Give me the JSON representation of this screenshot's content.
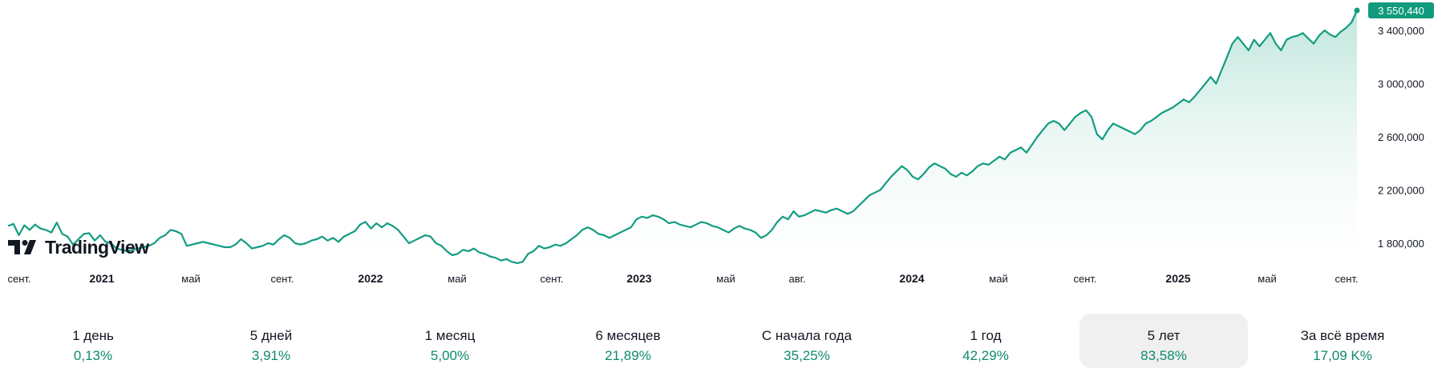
{
  "chart_data": {
    "type": "area",
    "x_labels": [
      "сент.",
      "2021",
      "май",
      "сент.",
      "2022",
      "май",
      "сент.",
      "2023",
      "май",
      "авг.",
      "2024",
      "май",
      "сент.",
      "2025",
      "май",
      "сент."
    ],
    "bold_x_labels": [
      "2021",
      "2022",
      "2023",
      "2024",
      "2025"
    ],
    "y_ticks": [
      "3 400,000",
      "3 000,000",
      "2 600,000",
      "2 200,000",
      "1 800,000"
    ],
    "y_tick_values": [
      3400000,
      3000000,
      2600000,
      2200000,
      1800000
    ],
    "current_price_label": "3 550,440",
    "current_price": 3550440,
    "ylim": [
      1600000,
      3600000
    ],
    "values": [
      1930000,
      1945000,
      1860000,
      1935000,
      1900000,
      1940000,
      1910000,
      1900000,
      1880000,
      1955000,
      1870000,
      1850000,
      1790000,
      1830000,
      1870000,
      1875000,
      1820000,
      1860000,
      1810000,
      1800000,
      1760000,
      1750000,
      1740000,
      1750000,
      1760000,
      1770000,
      1780000,
      1800000,
      1840000,
      1860000,
      1900000,
      1890000,
      1870000,
      1780000,
      1790000,
      1800000,
      1810000,
      1800000,
      1790000,
      1780000,
      1770000,
      1770000,
      1790000,
      1830000,
      1800000,
      1760000,
      1770000,
      1780000,
      1800000,
      1790000,
      1830000,
      1860000,
      1840000,
      1800000,
      1790000,
      1800000,
      1820000,
      1830000,
      1850000,
      1820000,
      1840000,
      1810000,
      1850000,
      1870000,
      1890000,
      1940000,
      1960000,
      1910000,
      1950000,
      1920000,
      1950000,
      1930000,
      1900000,
      1850000,
      1800000,
      1820000,
      1840000,
      1860000,
      1850000,
      1800000,
      1780000,
      1740000,
      1710000,
      1720000,
      1750000,
      1740000,
      1760000,
      1730000,
      1720000,
      1700000,
      1690000,
      1670000,
      1680000,
      1660000,
      1650000,
      1660000,
      1720000,
      1740000,
      1780000,
      1760000,
      1770000,
      1790000,
      1780000,
      1800000,
      1830000,
      1860000,
      1900000,
      1920000,
      1900000,
      1870000,
      1860000,
      1840000,
      1860000,
      1880000,
      1900000,
      1920000,
      1980000,
      2000000,
      1990000,
      2010000,
      2000000,
      1980000,
      1950000,
      1960000,
      1940000,
      1930000,
      1920000,
      1940000,
      1960000,
      1950000,
      1930000,
      1920000,
      1900000,
      1880000,
      1910000,
      1930000,
      1910000,
      1900000,
      1880000,
      1840000,
      1860000,
      1900000,
      1960000,
      2000000,
      1980000,
      2040000,
      2000000,
      2010000,
      2030000,
      2050000,
      2040000,
      2030000,
      2050000,
      2060000,
      2040000,
      2020000,
      2040000,
      2080000,
      2120000,
      2160000,
      2180000,
      2200000,
      2250000,
      2300000,
      2340000,
      2380000,
      2350000,
      2300000,
      2280000,
      2320000,
      2370000,
      2400000,
      2380000,
      2360000,
      2320000,
      2300000,
      2330000,
      2310000,
      2340000,
      2380000,
      2400000,
      2390000,
      2420000,
      2450000,
      2430000,
      2480000,
      2500000,
      2520000,
      2480000,
      2540000,
      2600000,
      2650000,
      2700000,
      2720000,
      2700000,
      2650000,
      2700000,
      2750000,
      2780000,
      2800000,
      2750000,
      2620000,
      2580000,
      2650000,
      2700000,
      2680000,
      2660000,
      2640000,
      2620000,
      2650000,
      2700000,
      2720000,
      2750000,
      2780000,
      2800000,
      2820000,
      2850000,
      2880000,
      2860000,
      2900000,
      2950000,
      3000000,
      3050000,
      3000000,
      3100000,
      3200000,
      3300000,
      3350000,
      3300000,
      3250000,
      3330000,
      3280000,
      3330000,
      3380000,
      3300000,
      3250000,
      3330000,
      3350000,
      3360000,
      3380000,
      3340000,
      3300000,
      3360000,
      3400000,
      3370000,
      3350000,
      3390000,
      3420000,
      3460000,
      3550440
    ]
  },
  "brand": {
    "logo_text": "TradingView",
    "logo_icon": "tradingview-logo-icon"
  },
  "colors": {
    "line": "#139c82",
    "fill_top": "#b7e3d7",
    "fill_bottom": "#ffffff",
    "price_badge": "#0f9b7c",
    "positive": "#0f8a6c",
    "active_tab_bg": "#f0f0f0",
    "axis_text": "#131722"
  },
  "periods": [
    {
      "label": "1 день",
      "value": "0,13%"
    },
    {
      "label": "5 дней",
      "value": "3,91%"
    },
    {
      "label": "1 месяц",
      "value": "5,00%"
    },
    {
      "label": "6 месяцев",
      "value": "21,89%"
    },
    {
      "label": "С начала года",
      "value": "35,25%"
    },
    {
      "label": "1 год",
      "value": "42,29%"
    },
    {
      "label": "5 лет",
      "value": "83,58%"
    },
    {
      "label": "За всё время",
      "value": "17,09 K%"
    }
  ],
  "active_period": "5 лет"
}
